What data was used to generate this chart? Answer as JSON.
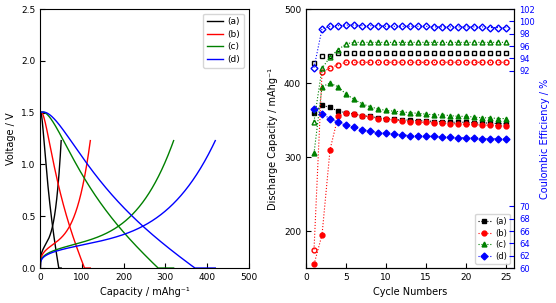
{
  "left": {
    "xlabel": "Capacity / mAhg⁻¹",
    "ylabel": "Voltage / V",
    "xlim": [
      0,
      500
    ],
    "ylim": [
      0.0,
      2.5
    ],
    "xticks": [
      0,
      100,
      200,
      300,
      400,
      500
    ],
    "yticks": [
      0.0,
      0.5,
      1.0,
      1.5,
      2.0,
      2.5
    ],
    "legend_labels": [
      "(a)",
      "(b)",
      "(c)",
      "(d)"
    ],
    "legend_colors": [
      "black",
      "red",
      "green",
      "blue"
    ],
    "curves": [
      {
        "color": "black",
        "dis_cap": 50,
        "chg_cap": 50
      },
      {
        "color": "red",
        "dis_cap": 120,
        "chg_cap": 120
      },
      {
        "color": "green",
        "dis_cap": 320,
        "chg_cap": 320
      },
      {
        "color": "blue",
        "dis_cap": 420,
        "chg_cap": 420
      }
    ]
  },
  "right": {
    "xlabel": "Cycle Numbers",
    "ylabel_left": "Discharge Capacity / mAhg⁻¹",
    "ylabel_right": "Coulombic Efficiency / %",
    "xlim": [
      0,
      26
    ],
    "ylim_left": [
      150,
      500
    ],
    "ylim_right": [
      60,
      102
    ],
    "xticks": [
      0,
      5,
      10,
      15,
      20,
      25
    ],
    "yticks_left": [
      200,
      300,
      400,
      500
    ],
    "yticks_right_top": [
      92,
      94,
      96,
      98,
      100,
      102
    ],
    "yticks_right_bot": [
      60,
      62,
      64,
      66,
      68,
      70
    ],
    "legend_labels": [
      "(a)",
      "(b)",
      "(c)",
      "(d)"
    ],
    "legend_colors": [
      "black",
      "red",
      "green",
      "blue"
    ],
    "a_discharge": [
      360,
      370,
      367,
      362,
      360,
      358,
      356,
      355,
      353,
      352,
      351,
      350,
      350,
      349,
      349,
      348,
      348,
      347,
      347,
      347,
      346,
      346,
      346,
      345,
      345
    ],
    "b_discharge": [
      155,
      195,
      310,
      355,
      360,
      358,
      356,
      354,
      352,
      351,
      350,
      349,
      348,
      347,
      347,
      346,
      346,
      345,
      345,
      344,
      344,
      343,
      343,
      342,
      342
    ],
    "c_discharge": [
      305,
      395,
      400,
      395,
      385,
      378,
      372,
      368,
      365,
      363,
      362,
      361,
      360,
      359,
      358,
      357,
      357,
      356,
      355,
      355,
      354,
      353,
      353,
      352,
      352
    ],
    "d_discharge": [
      365,
      358,
      352,
      347,
      343,
      340,
      337,
      335,
      333,
      332,
      331,
      330,
      329,
      329,
      328,
      328,
      327,
      327,
      326,
      326,
      326,
      325,
      325,
      325,
      324
    ],
    "a_charge_open": [
      427,
      437,
      437,
      440,
      440,
      440,
      440,
      440,
      440,
      440,
      440,
      440,
      440,
      440,
      440,
      440,
      440,
      440,
      440,
      440,
      440,
      440,
      440,
      440,
      440
    ],
    "b_charge_open": [
      175,
      415,
      420,
      425,
      428,
      428,
      428,
      428,
      428,
      428,
      428,
      428,
      428,
      428,
      428,
      428,
      428,
      428,
      428,
      428,
      428,
      428,
      428,
      428,
      428
    ],
    "c_charge_open": [
      348,
      420,
      435,
      445,
      453,
      455,
      455,
      455,
      455,
      455,
      455,
      455,
      455,
      455,
      455,
      455,
      455,
      455,
      455,
      455,
      455,
      455,
      455,
      455,
      455
    ],
    "d_coulombic": [
      92.5,
      98.8,
      99.2,
      99.3,
      99.4,
      99.4,
      99.3,
      99.3,
      99.3,
      99.2,
      99.2,
      99.2,
      99.2,
      99.2,
      99.2,
      99.1,
      99.1,
      99.1,
      99.1,
      99.1,
      99.1,
      99.1,
      99.0,
      99.0,
      99.0
    ]
  }
}
